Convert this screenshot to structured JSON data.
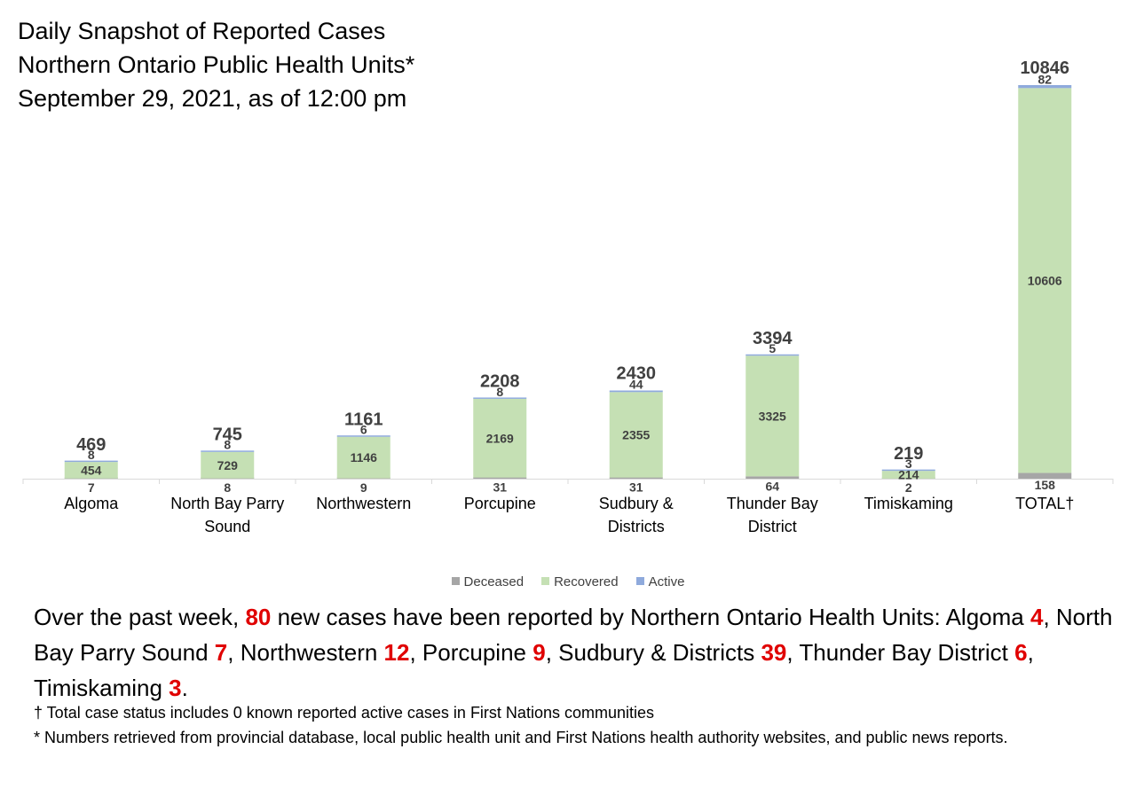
{
  "title": {
    "line1": "Daily Snapshot of Reported Cases",
    "line2": "Northern Ontario Public Health Units*",
    "line3": "September 29, 2021, as of 12:00 pm"
  },
  "chart_data": {
    "type": "bar",
    "stacked": true,
    "categories": [
      "Algoma",
      "North Bay Parry Sound",
      "Northwestern",
      "Porcupine",
      "Sudbury & Districts",
      "Thunder Bay District",
      "Timiskaming",
      "TOTAL†"
    ],
    "category_lines": [
      [
        "Algoma"
      ],
      [
        "North Bay Parry",
        "Sound"
      ],
      [
        "Northwestern"
      ],
      [
        "Porcupine"
      ],
      [
        "Sudbury &",
        "Districts"
      ],
      [
        "Thunder Bay",
        "District"
      ],
      [
        "Timiskaming"
      ],
      [
        "TOTAL†"
      ]
    ],
    "series": [
      {
        "name": "Deceased",
        "color": "#a6a6a6",
        "values": [
          7,
          8,
          9,
          31,
          31,
          64,
          2,
          158
        ]
      },
      {
        "name": "Recovered",
        "color": "#c5e0b4",
        "values": [
          454,
          729,
          1146,
          2169,
          2355,
          3325,
          214,
          10606
        ]
      },
      {
        "name": "Active",
        "color": "#8faadc",
        "values": [
          8,
          8,
          6,
          8,
          44,
          5,
          3,
          82
        ]
      }
    ],
    "totals": [
      469,
      745,
      1161,
      2208,
      2430,
      3394,
      219,
      10846
    ],
    "ylim": [
      0,
      10846
    ],
    "legend": "bottom",
    "grid": false
  },
  "summary": {
    "prefix": "Over the past week, ",
    "week_total": "80",
    "suffix": " new cases have been reported by Northern Ontario Health Units:",
    "items": [
      {
        "name": "Algoma ",
        "count": "4",
        "sep": ", "
      },
      {
        "name": "North Bay Parry Sound ",
        "count": "7",
        "sep": ", "
      },
      {
        "name": "Northwestern ",
        "count": "12",
        "sep": ", "
      },
      {
        "name": "Porcupine ",
        "count": "9",
        "sep": ", "
      },
      {
        "name": "Sudbury & Districts ",
        "count": "39",
        "sep": ", "
      },
      {
        "name": "Thunder Bay District ",
        "count": "6",
        "sep": ", "
      },
      {
        "name": "Timiskaming ",
        "count": "3",
        "sep": "."
      }
    ]
  },
  "notes": {
    "dagger": "† Total case status includes 0 known reported active cases in First Nations communities",
    "asterisk": "* Numbers retrieved from provincial database, local public health unit and First Nations health authority websites, and public news reports."
  }
}
